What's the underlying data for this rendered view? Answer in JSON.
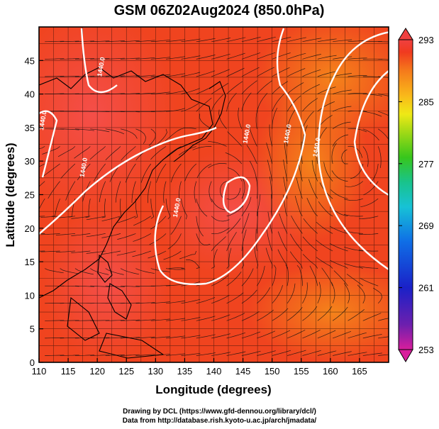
{
  "chart_data": {
    "type": "heatmap",
    "title": "GSM 06Z02Aug2024 (850.0hPa)",
    "xlabel": "Longitude (degrees)",
    "ylabel": "Latitude  (degrees)",
    "xlim": [
      110,
      170
    ],
    "ylim": [
      0,
      50
    ],
    "x_ticks": [
      110,
      115,
      120,
      125,
      130,
      135,
      140,
      145,
      150,
      155,
      160,
      165
    ],
    "y_ticks": [
      0,
      5,
      10,
      15,
      20,
      25,
      30,
      35,
      40,
      45
    ],
    "grid": true,
    "colorbar": {
      "position": "right",
      "ticks": [
        293,
        285,
        277,
        269,
        261,
        253
      ],
      "range": [
        253,
        293
      ],
      "colors": [
        "#d81e9c",
        "#6d1fae",
        "#1a21c8",
        "#0f6fe6",
        "#17c2d6",
        "#19c38c",
        "#37c61c",
        "#9fd916",
        "#efe916",
        "#f9b81a",
        "#f57a1b",
        "#f03a1f",
        "#ef4040"
      ]
    },
    "contour_labels": [
      {
        "text": "1440.0",
        "lon": 121,
        "lat": 44
      },
      {
        "text": "1440.0",
        "lon": 111,
        "lat": 36
      },
      {
        "text": "1440.0",
        "lon": 118,
        "lat": 29
      },
      {
        "text": "1440.0",
        "lon": 134,
        "lat": 23
      },
      {
        "text": "1440.0",
        "lon": 146,
        "lat": 34
      },
      {
        "text": "1440.0",
        "lon": 153,
        "lat": 34
      },
      {
        "text": "1440.0",
        "lon": 158,
        "lat": 32
      }
    ]
  },
  "credits": {
    "line1": "Drawing by DCL (https://www.gfd-dennou.org/library/dcl/)",
    "line2": "Data from http://database.rish.kyoto-u.ac.jp/arch/jmadata/"
  }
}
